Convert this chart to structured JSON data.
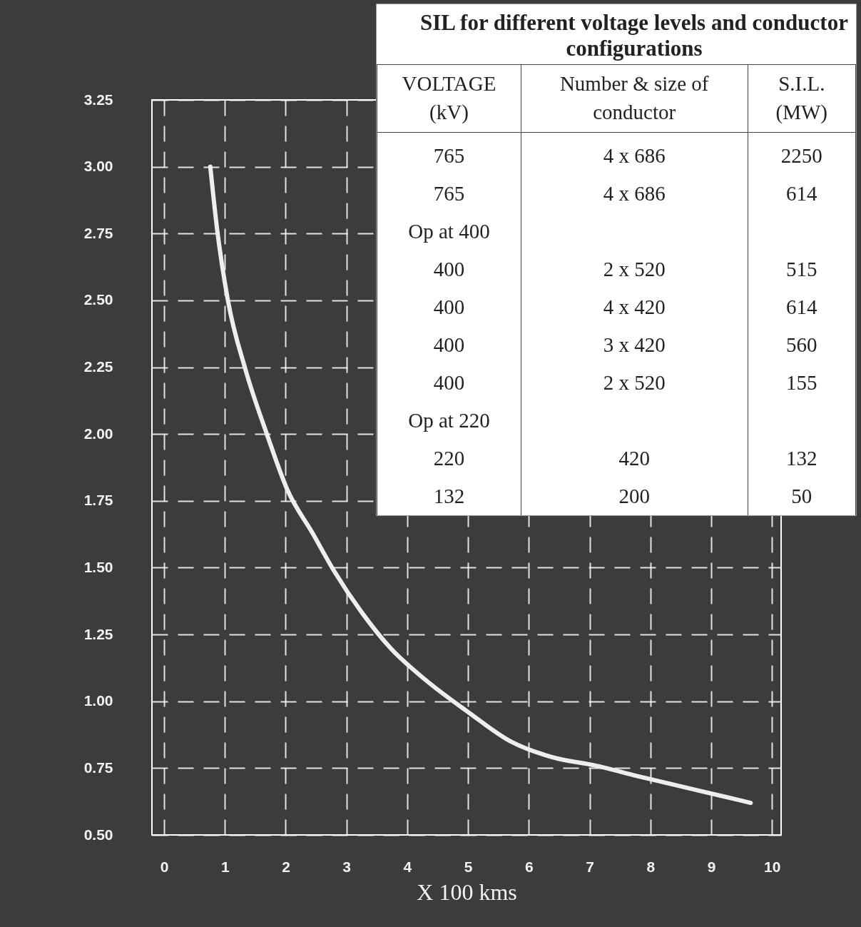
{
  "chart_data": [
    {
      "type": "line",
      "xlabel": "X 100 kms",
      "x": [
        0.76,
        0.87,
        1.05,
        1.34,
        1.69,
        2.03,
        2.44,
        2.79,
        3.26,
        3.72,
        4.3,
        5.0,
        5.7,
        6.4,
        7.09,
        7.79,
        8.72,
        9.65
      ],
      "series": [
        {
          "color": "#eeeeee",
          "values": [
            3.0,
            2.77,
            2.5,
            2.24,
            2.0,
            1.79,
            1.63,
            1.49,
            1.33,
            1.2,
            1.08,
            0.96,
            0.85,
            0.79,
            0.76,
            0.72,
            0.67,
            0.62
          ]
        }
      ],
      "xlim": [
        -0.2,
        10.15
      ],
      "xticks": [
        0,
        1,
        2,
        3,
        4,
        5,
        6,
        7,
        8,
        9,
        10
      ],
      "ylim": [
        0.5,
        3.25
      ],
      "yticks": [
        {
          "value": 0.5,
          "label": "0.50"
        },
        {
          "value": 0.75,
          "label": "0.75"
        },
        {
          "value": 1,
          "label": "1.00"
        },
        {
          "value": 1.25,
          "label": "1.25"
        },
        {
          "value": 1.5,
          "label": "1.50"
        },
        {
          "value": 1.75,
          "label": "1.75"
        },
        {
          "value": 2,
          "label": "2.00"
        },
        {
          "value": 2.25,
          "label": "2.25"
        },
        {
          "value": 2.5,
          "label": "2.50"
        },
        {
          "value": 2.75,
          "label": "2.75"
        },
        {
          "value": 3,
          "label": "3.00"
        },
        {
          "value": 3.25,
          "label": "3.25"
        }
      ],
      "grid": true,
      "line_style": "solid"
    },
    {
      "type": "other",
      "title": "SIL for different voltage levels and conductor configurations",
      "annotations": [
        "VOLTAGE (kV)",
        "Number & size of conductor",
        "S.I.L. (MW)",
        "765",
        "4 x 686",
        "2250",
        "765",
        "4 x 686",
        "614",
        "Op at 400",
        null,
        null,
        "400",
        "2 x 520",
        "515",
        "400",
        "4 x 420",
        "614",
        "400",
        "3 x 420",
        "560",
        "400",
        "2 x 520",
        "155",
        "Op at 220",
        null,
        null,
        "220",
        "420",
        "132",
        "132",
        "200",
        "50"
      ]
    }
  ]
}
